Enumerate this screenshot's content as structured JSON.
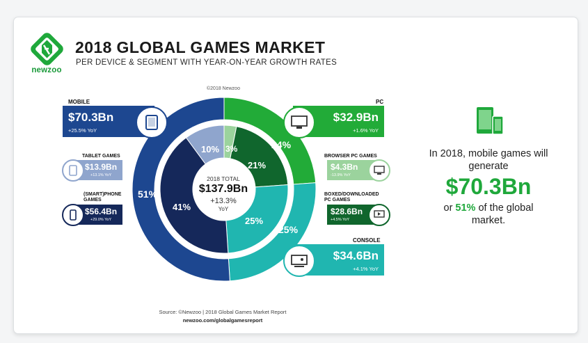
{
  "header": {
    "brand": "newzoo",
    "title": "2018 GLOBAL GAMES MARKET",
    "subtitle": "PER DEVICE & SEGMENT WITH YEAR-ON-YEAR GROWTH RATES",
    "copyright": "©2018 Newzoo"
  },
  "center": {
    "label": "2018 TOTAL",
    "value": "$137.9Bn",
    "growth": "+13.3%",
    "growth_unit": "YoY"
  },
  "segments": {
    "mobile": {
      "title": "MOBILE",
      "value": "$70.3Bn",
      "yoy": "+25.5% YoY"
    },
    "tablet": {
      "title": "TABLET GAMES",
      "value": "$13.9Bn",
      "yoy": "+13.1% YoY"
    },
    "phone": {
      "title": "(SMART)PHONE GAMES",
      "value": "$56.4Bn",
      "yoy": "+29.0% YoY"
    },
    "pc": {
      "title": "PC",
      "value": "$32.9Bn",
      "yoy": "+1.6% YoY"
    },
    "browser": {
      "title": "BROWSER PC GAMES",
      "value": "$4.3Bn",
      "yoy": "-13.9% YoY"
    },
    "boxed": {
      "title": "BOXED/DOWNLOADED PC GAMES",
      "value": "$28.6Bn",
      "yoy": "+4.5% YoY"
    },
    "console": {
      "title": "CONSOLE",
      "value": "$34.6Bn",
      "yoy": "+4.1% YoY"
    }
  },
  "footer": {
    "source": "Source: ©Newzoo | 2018 Global Games Market Report",
    "url": "newzoo.com/globalgamesreport"
  },
  "statement": {
    "line1": "In 2018, mobile games will generate",
    "value": "$70.3Bn",
    "prefix": "or ",
    "pct": "51%",
    "suffix": " of the global market."
  },
  "icons": [
    "newzoo-logo-icon",
    "tablet-icon",
    "phone-icon",
    "desktop-pc-icon",
    "browser-icon",
    "boxed-pc-icon",
    "console-icon",
    "mobile-devices-icon"
  ],
  "colors": {
    "mobile": "#1d4790",
    "tablet": "#8fa5cd",
    "phone": "#15285a",
    "pc": "#22ab38",
    "browser": "#9bd39d",
    "boxed": "#10662d",
    "console": "#20b6b0",
    "accent": "#1fa83b"
  },
  "chart_data": {
    "type": "pie",
    "title": "2018 GLOBAL GAMES MARKET",
    "unit": "$Bn",
    "total": 137.9,
    "series": [
      {
        "name": "Device",
        "labels": [
          "PC",
          "CONSOLE",
          "MOBILE"
        ],
        "values": [
          32.9,
          34.6,
          70.3
        ],
        "percent": [
          24,
          25,
          51
        ],
        "yoy": [
          "+1.6%",
          "+4.1%",
          "+25.5%"
        ]
      },
      {
        "name": "Segment",
        "labels": [
          "BROWSER PC GAMES",
          "BOXED/DOWNLOADED PC GAMES",
          "CONSOLE",
          "(SMART)PHONE GAMES",
          "TABLET GAMES"
        ],
        "values": [
          4.3,
          28.6,
          34.6,
          56.4,
          13.9
        ],
        "percent": [
          3,
          21,
          25,
          41,
          10
        ],
        "yoy": [
          "-13.9%",
          "+4.5%",
          "+4.1%",
          "+29.0%",
          "+13.1%"
        ]
      }
    ],
    "center_label": "2018 TOTAL",
    "center_value": "$137.9Bn",
    "center_growth": "+13.3% YoY"
  }
}
